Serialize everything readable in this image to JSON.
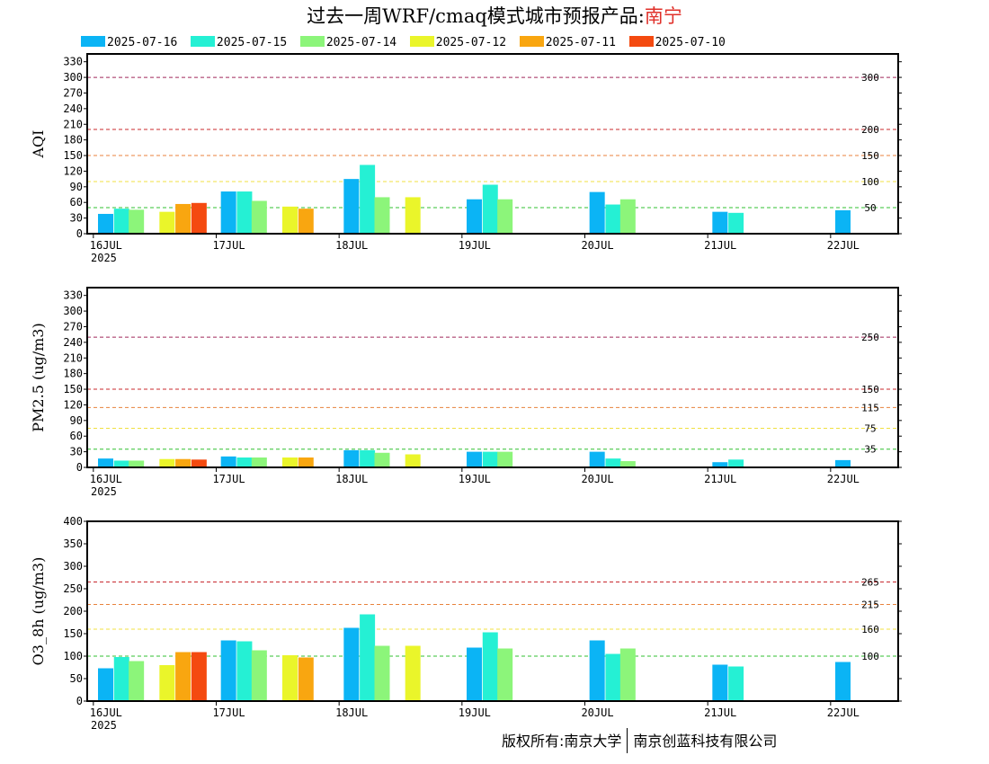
{
  "title": {
    "main": "过去一周WRF/cmaq模式城市预报产品:",
    "city": "南宁"
  },
  "legend": [
    {
      "label": "2025-07-16",
      "color": "#0bb4f5"
    },
    {
      "label": "2025-07-15",
      "color": "#25f0d4"
    },
    {
      "label": "2025-07-14",
      "color": "#8cf57a"
    },
    {
      "label": "2025-07-12",
      "color": "#eaf52a"
    },
    {
      "label": "2025-07-11",
      "color": "#f9a610"
    },
    {
      "label": "2025-07-10",
      "color": "#f44a10"
    }
  ],
  "footer": {
    "left": "版权所有:南京大学",
    "right": "南京创蓝科技有限公司"
  },
  "chart_data": [
    {
      "type": "bar",
      "ylabel": "AQI",
      "ylim": [
        0,
        345
      ],
      "yticks": [
        0,
        30,
        60,
        90,
        120,
        150,
        180,
        210,
        240,
        270,
        300,
        330
      ],
      "categories": [
        "16JUL",
        "17JUL",
        "18JUL",
        "19JUL",
        "20JUL",
        "21JUL",
        "22JUL"
      ],
      "year_label": "2025",
      "xlim": [
        -0.05,
        6.55
      ],
      "thresholds": [
        {
          "value": 300,
          "label": "300",
          "color": "#a0285a"
        },
        {
          "value": 200,
          "label": "200",
          "color": "#c8282e"
        },
        {
          "value": 150,
          "label": "150",
          "color": "#e8823c"
        },
        {
          "value": 100,
          "label": "100",
          "color": "#f0e040"
        },
        {
          "value": 50,
          "label": "50",
          "color": "#30c030"
        }
      ],
      "bars": [
        {
          "x": 0.1,
          "value": 38,
          "series": 0
        },
        {
          "x": 0.23,
          "value": 48,
          "series": 1
        },
        {
          "x": 0.35,
          "value": 46,
          "series": 2
        },
        {
          "x": 0.6,
          "value": 42,
          "series": 3
        },
        {
          "x": 0.73,
          "value": 57,
          "series": 4
        },
        {
          "x": 0.86,
          "value": 59,
          "series": 5
        },
        {
          "x": 1.1,
          "value": 81,
          "series": 0
        },
        {
          "x": 1.23,
          "value": 81,
          "series": 1
        },
        {
          "x": 1.35,
          "value": 63,
          "series": 2
        },
        {
          "x": 1.6,
          "value": 52,
          "series": 3
        },
        {
          "x": 1.73,
          "value": 48,
          "series": 4
        },
        {
          "x": 2.1,
          "value": 105,
          "series": 0
        },
        {
          "x": 2.23,
          "value": 132,
          "series": 1
        },
        {
          "x": 2.35,
          "value": 70,
          "series": 2
        },
        {
          "x": 2.6,
          "value": 70,
          "series": 3
        },
        {
          "x": 3.1,
          "value": 66,
          "series": 0
        },
        {
          "x": 3.23,
          "value": 94,
          "series": 1
        },
        {
          "x": 3.35,
          "value": 66,
          "series": 2
        },
        {
          "x": 4.1,
          "value": 80,
          "series": 0
        },
        {
          "x": 4.23,
          "value": 56,
          "series": 1
        },
        {
          "x": 4.35,
          "value": 66,
          "series": 2
        },
        {
          "x": 5.1,
          "value": 42,
          "series": 0
        },
        {
          "x": 5.23,
          "value": 40,
          "series": 1
        },
        {
          "x": 6.1,
          "value": 45,
          "series": 0
        }
      ]
    },
    {
      "type": "bar",
      "ylabel": "PM2.5 (ug/m3)",
      "ylim": [
        0,
        345
      ],
      "yticks": [
        0,
        30,
        60,
        90,
        120,
        150,
        180,
        210,
        240,
        270,
        300,
        330
      ],
      "categories": [
        "16JUL",
        "17JUL",
        "18JUL",
        "19JUL",
        "20JUL",
        "21JUL",
        "22JUL"
      ],
      "year_label": "2025",
      "xlim": [
        -0.05,
        6.55
      ],
      "thresholds": [
        {
          "value": 250,
          "label": "250",
          "color": "#a0285a"
        },
        {
          "value": 150,
          "label": "150",
          "color": "#c8282e"
        },
        {
          "value": 115,
          "label": "115",
          "color": "#e8823c"
        },
        {
          "value": 75,
          "label": "75",
          "color": "#f0e040"
        },
        {
          "value": 35,
          "label": "35",
          "color": "#30c030"
        }
      ],
      "bars": [
        {
          "x": 0.1,
          "value": 17,
          "series": 0
        },
        {
          "x": 0.23,
          "value": 13,
          "series": 1
        },
        {
          "x": 0.35,
          "value": 13,
          "series": 2
        },
        {
          "x": 0.6,
          "value": 16,
          "series": 3
        },
        {
          "x": 0.73,
          "value": 16,
          "series": 4
        },
        {
          "x": 0.86,
          "value": 15,
          "series": 5
        },
        {
          "x": 1.1,
          "value": 21,
          "series": 0
        },
        {
          "x": 1.23,
          "value": 19,
          "series": 1
        },
        {
          "x": 1.35,
          "value": 19,
          "series": 2
        },
        {
          "x": 1.6,
          "value": 19,
          "series": 3
        },
        {
          "x": 1.73,
          "value": 19,
          "series": 4
        },
        {
          "x": 2.1,
          "value": 33,
          "series": 0
        },
        {
          "x": 2.23,
          "value": 33,
          "series": 1
        },
        {
          "x": 2.35,
          "value": 28,
          "series": 2
        },
        {
          "x": 2.6,
          "value": 25,
          "series": 3
        },
        {
          "x": 3.1,
          "value": 30,
          "series": 0
        },
        {
          "x": 3.23,
          "value": 30,
          "series": 1
        },
        {
          "x": 3.35,
          "value": 30,
          "series": 2
        },
        {
          "x": 4.1,
          "value": 30,
          "series": 0
        },
        {
          "x": 4.23,
          "value": 17,
          "series": 1
        },
        {
          "x": 4.35,
          "value": 12,
          "series": 2
        },
        {
          "x": 5.1,
          "value": 10,
          "series": 0
        },
        {
          "x": 5.23,
          "value": 15,
          "series": 1
        },
        {
          "x": 6.1,
          "value": 14,
          "series": 0
        }
      ]
    },
    {
      "type": "bar",
      "ylabel": "O3_8h (ug/m3)",
      "ylim": [
        0,
        400
      ],
      "yticks": [
        0,
        50,
        100,
        150,
        200,
        250,
        300,
        350,
        400
      ],
      "categories": [
        "16JUL",
        "17JUL",
        "18JUL",
        "19JUL",
        "20JUL",
        "21JUL",
        "22JUL"
      ],
      "year_label": "2025",
      "xlim": [
        -0.05,
        6.55
      ],
      "thresholds": [
        {
          "value": 265,
          "label": "265",
          "color": "#c8282e"
        },
        {
          "value": 215,
          "label": "215",
          "color": "#e8823c"
        },
        {
          "value": 160,
          "label": "160",
          "color": "#f0e040"
        },
        {
          "value": 100,
          "label": "100",
          "color": "#30c030"
        }
      ],
      "bars": [
        {
          "x": 0.1,
          "value": 73,
          "series": 0
        },
        {
          "x": 0.23,
          "value": 98,
          "series": 1
        },
        {
          "x": 0.35,
          "value": 89,
          "series": 2
        },
        {
          "x": 0.6,
          "value": 80,
          "series": 3
        },
        {
          "x": 0.73,
          "value": 109,
          "series": 4
        },
        {
          "x": 0.86,
          "value": 109,
          "series": 5
        },
        {
          "x": 1.1,
          "value": 135,
          "series": 0
        },
        {
          "x": 1.23,
          "value": 133,
          "series": 1
        },
        {
          "x": 1.35,
          "value": 113,
          "series": 2
        },
        {
          "x": 1.6,
          "value": 102,
          "series": 3
        },
        {
          "x": 1.73,
          "value": 97,
          "series": 4
        },
        {
          "x": 2.1,
          "value": 163,
          "series": 0
        },
        {
          "x": 2.23,
          "value": 193,
          "series": 1
        },
        {
          "x": 2.35,
          "value": 123,
          "series": 2
        },
        {
          "x": 2.6,
          "value": 123,
          "series": 3
        },
        {
          "x": 3.1,
          "value": 119,
          "series": 0
        },
        {
          "x": 3.23,
          "value": 153,
          "series": 1
        },
        {
          "x": 3.35,
          "value": 117,
          "series": 2
        },
        {
          "x": 4.1,
          "value": 135,
          "series": 0
        },
        {
          "x": 4.23,
          "value": 105,
          "series": 1
        },
        {
          "x": 4.35,
          "value": 117,
          "series": 2
        },
        {
          "x": 5.1,
          "value": 81,
          "series": 0
        },
        {
          "x": 5.23,
          "value": 77,
          "series": 1
        },
        {
          "x": 6.1,
          "value": 87,
          "series": 0
        }
      ]
    }
  ]
}
